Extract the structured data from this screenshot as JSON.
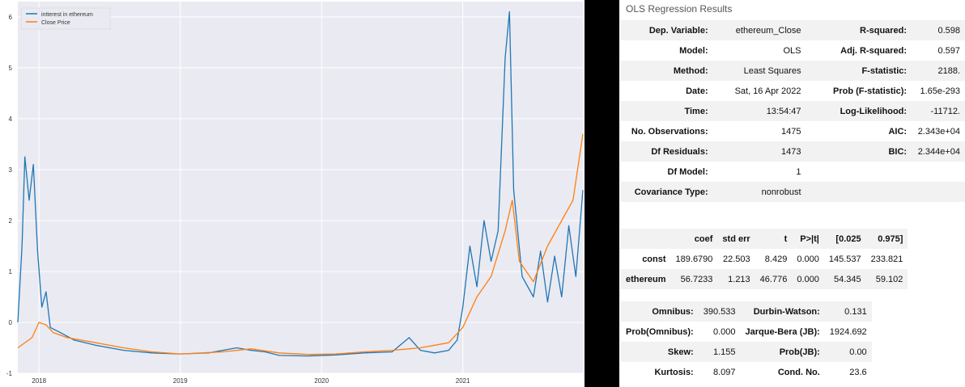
{
  "chart_data": {
    "type": "line",
    "ylim": [
      -1,
      6.3
    ],
    "yticks": [
      "-1",
      "0",
      "1",
      "2",
      "3",
      "4",
      "5",
      "6"
    ],
    "xticks": [
      "2018",
      "2019",
      "2020",
      "2021"
    ],
    "series": [
      {
        "name": "intterest in ethereum",
        "color": "#1f77b4",
        "points": [
          [
            2017.85,
            0.0
          ],
          [
            2017.88,
            1.5
          ],
          [
            2017.9,
            3.25
          ],
          [
            2017.93,
            2.4
          ],
          [
            2017.96,
            3.1
          ],
          [
            2017.99,
            1.4
          ],
          [
            2018.02,
            0.3
          ],
          [
            2018.05,
            0.6
          ],
          [
            2018.08,
            -0.1
          ],
          [
            2018.15,
            -0.2
          ],
          [
            2018.25,
            -0.35
          ],
          [
            2018.4,
            -0.45
          ],
          [
            2018.6,
            -0.55
          ],
          [
            2018.8,
            -0.6
          ],
          [
            2019.0,
            -0.62
          ],
          [
            2019.2,
            -0.6
          ],
          [
            2019.4,
            -0.5
          ],
          [
            2019.5,
            -0.55
          ],
          [
            2019.6,
            -0.58
          ],
          [
            2019.7,
            -0.65
          ],
          [
            2019.9,
            -0.66
          ],
          [
            2020.1,
            -0.64
          ],
          [
            2020.3,
            -0.6
          ],
          [
            2020.5,
            -0.58
          ],
          [
            2020.62,
            -0.3
          ],
          [
            2020.7,
            -0.55
          ],
          [
            2020.8,
            -0.6
          ],
          [
            2020.9,
            -0.55
          ],
          [
            2020.96,
            -0.35
          ],
          [
            2021.0,
            0.3
          ],
          [
            2021.05,
            1.5
          ],
          [
            2021.1,
            0.7
          ],
          [
            2021.15,
            2.0
          ],
          [
            2021.2,
            1.2
          ],
          [
            2021.25,
            1.8
          ],
          [
            2021.3,
            5.2
          ],
          [
            2021.33,
            6.1
          ],
          [
            2021.36,
            2.6
          ],
          [
            2021.42,
            0.9
          ],
          [
            2021.5,
            0.5
          ],
          [
            2021.55,
            1.4
          ],
          [
            2021.6,
            0.4
          ],
          [
            2021.65,
            1.3
          ],
          [
            2021.7,
            0.5
          ],
          [
            2021.75,
            1.9
          ],
          [
            2021.8,
            0.9
          ],
          [
            2021.85,
            2.6
          ]
        ]
      },
      {
        "name": "Close Price",
        "color": "#ff7f0e",
        "points": [
          [
            2017.85,
            -0.5
          ],
          [
            2017.95,
            -0.3
          ],
          [
            2018.0,
            0.0
          ],
          [
            2018.05,
            -0.05
          ],
          [
            2018.1,
            -0.2
          ],
          [
            2018.2,
            -0.3
          ],
          [
            2018.4,
            -0.4
          ],
          [
            2018.6,
            -0.5
          ],
          [
            2018.8,
            -0.58
          ],
          [
            2019.0,
            -0.62
          ],
          [
            2019.3,
            -0.58
          ],
          [
            2019.5,
            -0.52
          ],
          [
            2019.7,
            -0.6
          ],
          [
            2019.9,
            -0.63
          ],
          [
            2020.1,
            -0.62
          ],
          [
            2020.3,
            -0.58
          ],
          [
            2020.5,
            -0.55
          ],
          [
            2020.7,
            -0.5
          ],
          [
            2020.9,
            -0.4
          ],
          [
            2021.0,
            -0.1
          ],
          [
            2021.1,
            0.5
          ],
          [
            2021.2,
            0.9
          ],
          [
            2021.3,
            1.8
          ],
          [
            2021.35,
            2.4
          ],
          [
            2021.4,
            1.2
          ],
          [
            2021.5,
            0.8
          ],
          [
            2021.6,
            1.5
          ],
          [
            2021.7,
            2.0
          ],
          [
            2021.78,
            2.4
          ],
          [
            2021.85,
            3.7
          ]
        ]
      }
    ]
  },
  "results": {
    "title": "OLS Regression Results",
    "top": [
      [
        "Dep. Variable:",
        "ethereum_Close",
        "R-squared:",
        "0.598"
      ],
      [
        "Model:",
        "OLS",
        "Adj. R-squared:",
        "0.597"
      ],
      [
        "Method:",
        "Least Squares",
        "F-statistic:",
        "2188."
      ],
      [
        "Date:",
        "Sat, 16 Apr 2022",
        "Prob (F-statistic):",
        "1.65e-293"
      ],
      [
        "Time:",
        "13:54:47",
        "Log-Likelihood:",
        "-11712."
      ],
      [
        "No. Observations:",
        "1475",
        "AIC:",
        "2.343e+04"
      ],
      [
        "Df Residuals:",
        "1473",
        "BIC:",
        "2.344e+04"
      ],
      [
        "Df Model:",
        "1",
        "",
        ""
      ],
      [
        "Covariance Type:",
        "nonrobust",
        "",
        ""
      ]
    ],
    "coef_header": [
      "",
      "coef",
      "std err",
      "t",
      "P>|t|",
      "[0.025",
      "0.975]"
    ],
    "coef_rows": [
      [
        "const",
        "189.6790",
        "22.503",
        "8.429",
        "0.000",
        "145.537",
        "233.821"
      ],
      [
        "ethereum",
        "56.7233",
        "1.213",
        "46.776",
        "0.000",
        "54.345",
        "59.102"
      ]
    ],
    "diag": [
      [
        "Omnibus:",
        "390.533",
        "Durbin-Watson:",
        "0.131"
      ],
      [
        "Prob(Omnibus):",
        "0.000",
        "Jarque-Bera (JB):",
        "1924.692"
      ],
      [
        "Skew:",
        "1.155",
        "Prob(JB):",
        "0.00"
      ],
      [
        "Kurtosis:",
        "8.097",
        "Cond. No.",
        "23.6"
      ]
    ]
  }
}
